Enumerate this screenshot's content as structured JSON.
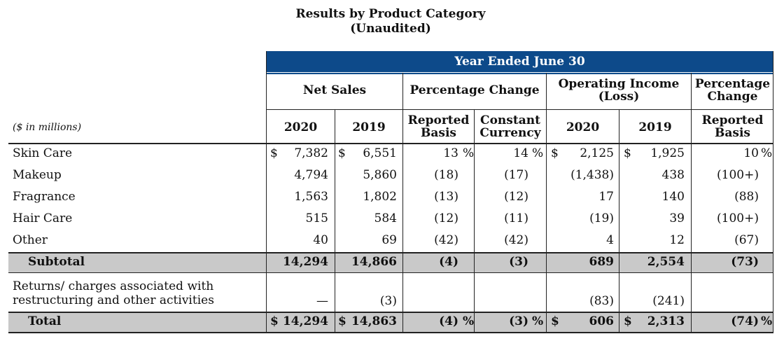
{
  "title": "Results by Product Category",
  "subtitle": "(Unaudited)",
  "units": "($ in millions)",
  "band": "Year Ended June 30",
  "headers": {
    "net_sales": "Net Sales",
    "pct_change": "Percentage Change",
    "op_income_1": "Operating Income",
    "op_income_2": "(Loss)",
    "pct_change2_1": "Percentage",
    "pct_change2_2": "Change",
    "y2020": "2020",
    "y2019": "2019",
    "reported_1": "Reported",
    "reported_2": "Basis",
    "constant_1": "Constant",
    "constant_2": "Currency",
    "oi2020": "2020",
    "oi2019": "2019",
    "rep2_1": "Reported",
    "rep2_2": "Basis"
  },
  "rows": [
    {
      "label": "Skin Care",
      "ns2020": "7,382",
      "ns2019": "6,551",
      "rep": "13",
      "cc": "14",
      "oi2020": "2,125",
      "oi2019": "1,925",
      "oirep": "10"
    },
    {
      "label": "Makeup",
      "ns2020": "4,794",
      "ns2019": "5,860",
      "rep": "(18)",
      "cc": "(17)",
      "oi2020": "(1,438)",
      "oi2019": "438",
      "oirep": "(100+)"
    },
    {
      "label": "Fragrance",
      "ns2020": "1,563",
      "ns2019": "1,802",
      "rep": "(13)",
      "cc": "(12)",
      "oi2020": "17",
      "oi2019": "140",
      "oirep": "(88)"
    },
    {
      "label": "Hair Care",
      "ns2020": "515",
      "ns2019": "584",
      "rep": "(12)",
      "cc": "(11)",
      "oi2020": "(19)",
      "oi2019": "39",
      "oirep": "(100+)"
    },
    {
      "label": "Other",
      "ns2020": "40",
      "ns2019": "69",
      "rep": "(42)",
      "cc": "(42)",
      "oi2020": "4",
      "oi2019": "12",
      "oirep": "(67)"
    }
  ],
  "subtotal": {
    "label": "Subtotal",
    "ns2020": "14,294",
    "ns2019": "14,866",
    "rep": "(4)",
    "cc": "(3)",
    "oi2020": "689",
    "oi2019": "2,554",
    "oirep": "(73)"
  },
  "returns": {
    "label1": "Returns/ charges associated with",
    "label2": "restructuring and other activities",
    "ns2020": "—",
    "ns2019": "(3)",
    "oi2020": "(83)",
    "oi2019": "(241)"
  },
  "total": {
    "label": "Total",
    "ns2020": "14,294",
    "ns2019": "14,863",
    "rep": "(4)",
    "cc": "(3)",
    "oi2020": "606",
    "oi2019": "2,313",
    "oirep": "(74)"
  },
  "symbols": {
    "dollar": "$",
    "percent": "%"
  }
}
